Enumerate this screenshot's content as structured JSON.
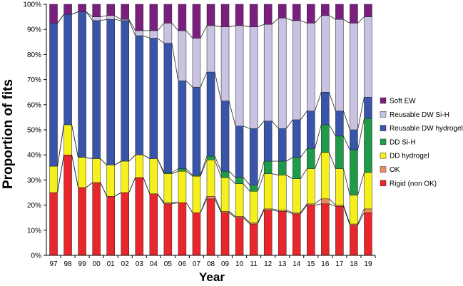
{
  "chart_data": {
    "type": "bar",
    "stacked": true,
    "normalized": true,
    "xlabel": "Year",
    "ylabel": "Proportion of fits",
    "ylim": [
      0,
      100
    ],
    "y_ticks": [
      "0%",
      "10%",
      "20%",
      "30%",
      "40%",
      "50%",
      "60%",
      "70%",
      "80%",
      "90%",
      "100%"
    ],
    "categories": [
      "97",
      "98",
      "99",
      "00",
      "01",
      "02",
      "03",
      "04",
      "05",
      "06",
      "07",
      "08",
      "09",
      "10",
      "11",
      "12",
      "13",
      "14",
      "15",
      "16",
      "17",
      "18",
      "19"
    ],
    "legend_position": "right",
    "series": [
      {
        "name": "Rigid (non OK)",
        "color": "#e8262b",
        "values": [
          25,
          40,
          27,
          29,
          23.5,
          25,
          31,
          24.5,
          20.5,
          21,
          17,
          22.5,
          17,
          15,
          12.5,
          18,
          17.5,
          16.5,
          20,
          20.5,
          19.5,
          12,
          17
        ]
      },
      {
        "name": "OK",
        "color": "#f08a5d",
        "values": [
          0,
          0,
          0,
          0,
          0,
          0,
          0,
          0,
          0.5,
          0,
          0,
          1,
          0.5,
          0.5,
          0.5,
          0.5,
          0.5,
          0.5,
          0.5,
          2,
          0.5,
          0.5,
          1.5
        ]
      },
      {
        "name": "DD hydrogel",
        "color": "#f5ef1b",
        "values": [
          10.5,
          12,
          12,
          9.5,
          12.5,
          12.5,
          9,
          14,
          11.5,
          12.5,
          14.5,
          14.5,
          13.5,
          13,
          12.5,
          14,
          14,
          13.5,
          14,
          18.5,
          14.5,
          11.5,
          14.5
        ]
      },
      {
        "name": "DD Si-H",
        "color": "#1e9a48",
        "values": [
          0,
          0,
          0,
          0,
          0,
          0,
          0,
          0,
          0.5,
          1,
          0.5,
          1.5,
          2.5,
          2.5,
          2.5,
          5,
          5.5,
          8.5,
          8,
          11,
          13,
          18,
          21.5
        ]
      },
      {
        "name": "Reusable DW hydrogel",
        "color": "#3855a9",
        "values": [
          57,
          44,
          58,
          55,
          58,
          56,
          47.5,
          48,
          51.5,
          35,
          35,
          33.5,
          28,
          20.5,
          22.5,
          16,
          13,
          15,
          15,
          13,
          10,
          8,
          8.5
        ]
      },
      {
        "name": "Reusable DW Si-H",
        "color": "#c9c2e0",
        "values": [
          0,
          0,
          0,
          1.5,
          1.5,
          0.5,
          2,
          3,
          8,
          20,
          19.5,
          18.5,
          29.5,
          40,
          40.5,
          38.5,
          44,
          39.5,
          35,
          30.5,
          36.5,
          42.5,
          32
        ]
      },
      {
        "name": "Soft EW",
        "color": "#7b1f7e",
        "values": [
          7.5,
          4,
          3,
          5,
          4.5,
          6,
          10.5,
          10.5,
          7.5,
          10.5,
          13.5,
          8.5,
          9,
          8.5,
          9,
          8,
          5.5,
          6.5,
          7.5,
          4.5,
          6,
          7.5,
          5
        ]
      }
    ]
  }
}
